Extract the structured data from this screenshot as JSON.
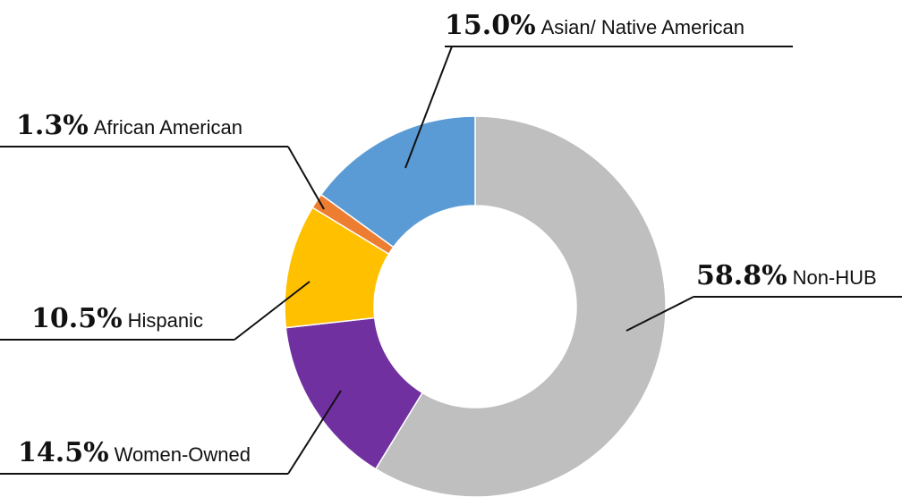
{
  "chart_data": {
    "type": "donut",
    "categories": [
      "Non-HUB",
      "Women-Owned",
      "Hispanic",
      "African American",
      "Asian/ Native American"
    ],
    "values": [
      58.8,
      14.5,
      10.5,
      1.3,
      15.0
    ],
    "value_labels": [
      "58.8%",
      "14.5%",
      "10.5%",
      "1.3%",
      "15.0%"
    ],
    "colors": [
      "#bfbfbf",
      "#7030a0",
      "#ffc000",
      "#ed7d31",
      "#5b9bd5"
    ]
  }
}
